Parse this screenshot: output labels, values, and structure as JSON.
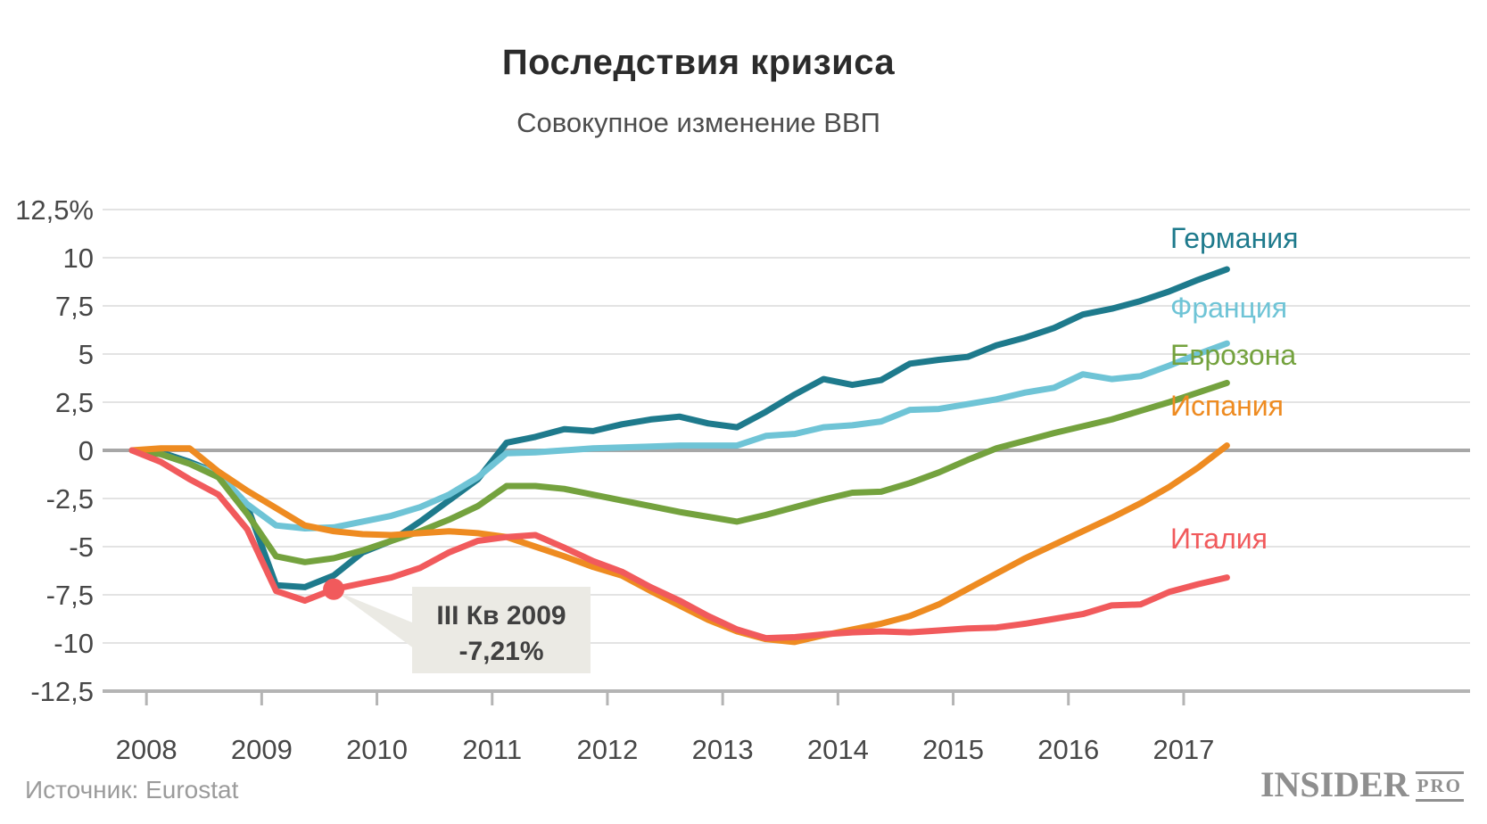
{
  "title": "Последствия кризиса",
  "subtitle": "Совокупное изменение ВВП",
  "source": "Источник: Eurostat",
  "logo": {
    "main": "INSIDER",
    "sub": "PRO"
  },
  "chart_data": {
    "type": "line",
    "title": "Последствия кризиса",
    "subtitle": "Совокупное изменение ВВП",
    "xlabel": "",
    "ylabel": "",
    "ylim": [
      -12.5,
      12.5
    ],
    "grid": true,
    "legend_position": "right-of-line-ends",
    "x_unit": "quarter",
    "x": [
      "IV 2007",
      "I 2008",
      "II 2008",
      "III 2008",
      "IV 2008",
      "I 2009",
      "II 2009",
      "III 2009",
      "IV 2009",
      "I 2010",
      "II 2010",
      "III 2010",
      "IV 2010",
      "I 2011",
      "II 2011",
      "III 2011",
      "IV 2011",
      "I 2012",
      "II 2012",
      "III 2012",
      "IV 2012",
      "I 2013",
      "II 2013",
      "III 2013",
      "IV 2013",
      "I 2014",
      "II 2014",
      "III 2014",
      "IV 2014",
      "I 2015",
      "II 2015",
      "III 2015",
      "IV 2015",
      "I 2016",
      "II 2016",
      "III 2016",
      "IV 2016",
      "I 2017",
      "II 2017"
    ],
    "x_tick_labels": [
      "2008",
      "2009",
      "2010",
      "2011",
      "2012",
      "2013",
      "2014",
      "2015",
      "2016",
      "2017"
    ],
    "y_ticks": [
      {
        "label": "12,5%",
        "value": 12.5
      },
      {
        "label": "10",
        "value": 10
      },
      {
        "label": "7,5",
        "value": 7.5
      },
      {
        "label": "5",
        "value": 5
      },
      {
        "label": "2,5",
        "value": 2.5
      },
      {
        "label": "0",
        "value": 0
      },
      {
        "label": "-2,5",
        "value": -2.5
      },
      {
        "label": "-5",
        "value": -5
      },
      {
        "label": "-7,5",
        "value": -7.5
      },
      {
        "label": "-10",
        "value": -10
      },
      {
        "label": "-12,5",
        "value": -12.5
      }
    ],
    "series": [
      {
        "name": "Германия",
        "color": "#1e7a8c",
        "values": [
          0,
          -0.1,
          -0.6,
          -1.2,
          -2.9,
          -7.0,
          -7.1,
          -6.5,
          -5.3,
          -4.7,
          -3.7,
          -2.6,
          -1.5,
          0.4,
          0.7,
          1.1,
          1.0,
          1.35,
          1.6,
          1.75,
          1.4,
          1.2,
          2.0,
          2.9,
          3.7,
          3.4,
          3.65,
          4.5,
          4.7,
          4.85,
          5.45,
          5.85,
          6.35,
          7.05,
          7.35,
          7.75,
          8.25,
          8.85,
          9.4
        ]
      },
      {
        "name": "Франция",
        "color": "#6fc4d6",
        "values": [
          0,
          -0.2,
          -0.7,
          -1.2,
          -2.8,
          -3.9,
          -4.05,
          -4.0,
          -3.7,
          -3.4,
          -2.95,
          -2.3,
          -1.4,
          -0.15,
          -0.1,
          0.0,
          0.1,
          0.15,
          0.2,
          0.25,
          0.25,
          0.25,
          0.75,
          0.85,
          1.2,
          1.3,
          1.5,
          2.1,
          2.15,
          2.4,
          2.65,
          3.0,
          3.25,
          3.95,
          3.7,
          3.85,
          4.4,
          5.0,
          5.55
        ]
      },
      {
        "name": "Еврозона",
        "color": "#74a23e",
        "values": [
          0,
          -0.2,
          -0.7,
          -1.4,
          -3.3,
          -5.5,
          -5.8,
          -5.6,
          -5.2,
          -4.7,
          -4.2,
          -3.6,
          -2.9,
          -1.85,
          -1.85,
          -2.0,
          -2.3,
          -2.6,
          -2.9,
          -3.2,
          -3.45,
          -3.7,
          -3.35,
          -2.95,
          -2.55,
          -2.2,
          -2.15,
          -1.7,
          -1.15,
          -0.5,
          0.1,
          0.5,
          0.9,
          1.25,
          1.6,
          2.05,
          2.5,
          3.0,
          3.5
        ]
      },
      {
        "name": "Испания",
        "color": "#ee8b21",
        "values": [
          0,
          0.1,
          0.1,
          -1.1,
          -2.1,
          -3.0,
          -3.9,
          -4.2,
          -4.35,
          -4.4,
          -4.3,
          -4.2,
          -4.3,
          -4.5,
          -5.0,
          -5.5,
          -6.05,
          -6.5,
          -7.3,
          -8.05,
          -8.8,
          -9.4,
          -9.8,
          -9.95,
          -9.6,
          -9.3,
          -9.0,
          -8.6,
          -8.0,
          -7.2,
          -6.4,
          -5.6,
          -4.9,
          -4.2,
          -3.5,
          -2.75,
          -1.9,
          -0.9,
          0.25
        ]
      },
      {
        "name": "Италия",
        "color": "#f15a5c",
        "values": [
          0,
          -0.6,
          -1.5,
          -2.3,
          -4.1,
          -7.3,
          -7.8,
          -7.21,
          -6.9,
          -6.6,
          -6.1,
          -5.3,
          -4.7,
          -4.5,
          -4.4,
          -5.05,
          -5.75,
          -6.3,
          -7.1,
          -7.8,
          -8.6,
          -9.3,
          -9.75,
          -9.7,
          -9.55,
          -9.45,
          -9.4,
          -9.45,
          -9.35,
          -9.25,
          -9.2,
          -9.0,
          -8.75,
          -8.5,
          -8.05,
          -8.0,
          -7.35,
          -6.95,
          -6.6
        ]
      }
    ],
    "annotation": {
      "line1": "III Кв 2009",
      "line2": "-7,21%",
      "series": "Италия",
      "x_index": 7,
      "value": -7.21
    }
  }
}
